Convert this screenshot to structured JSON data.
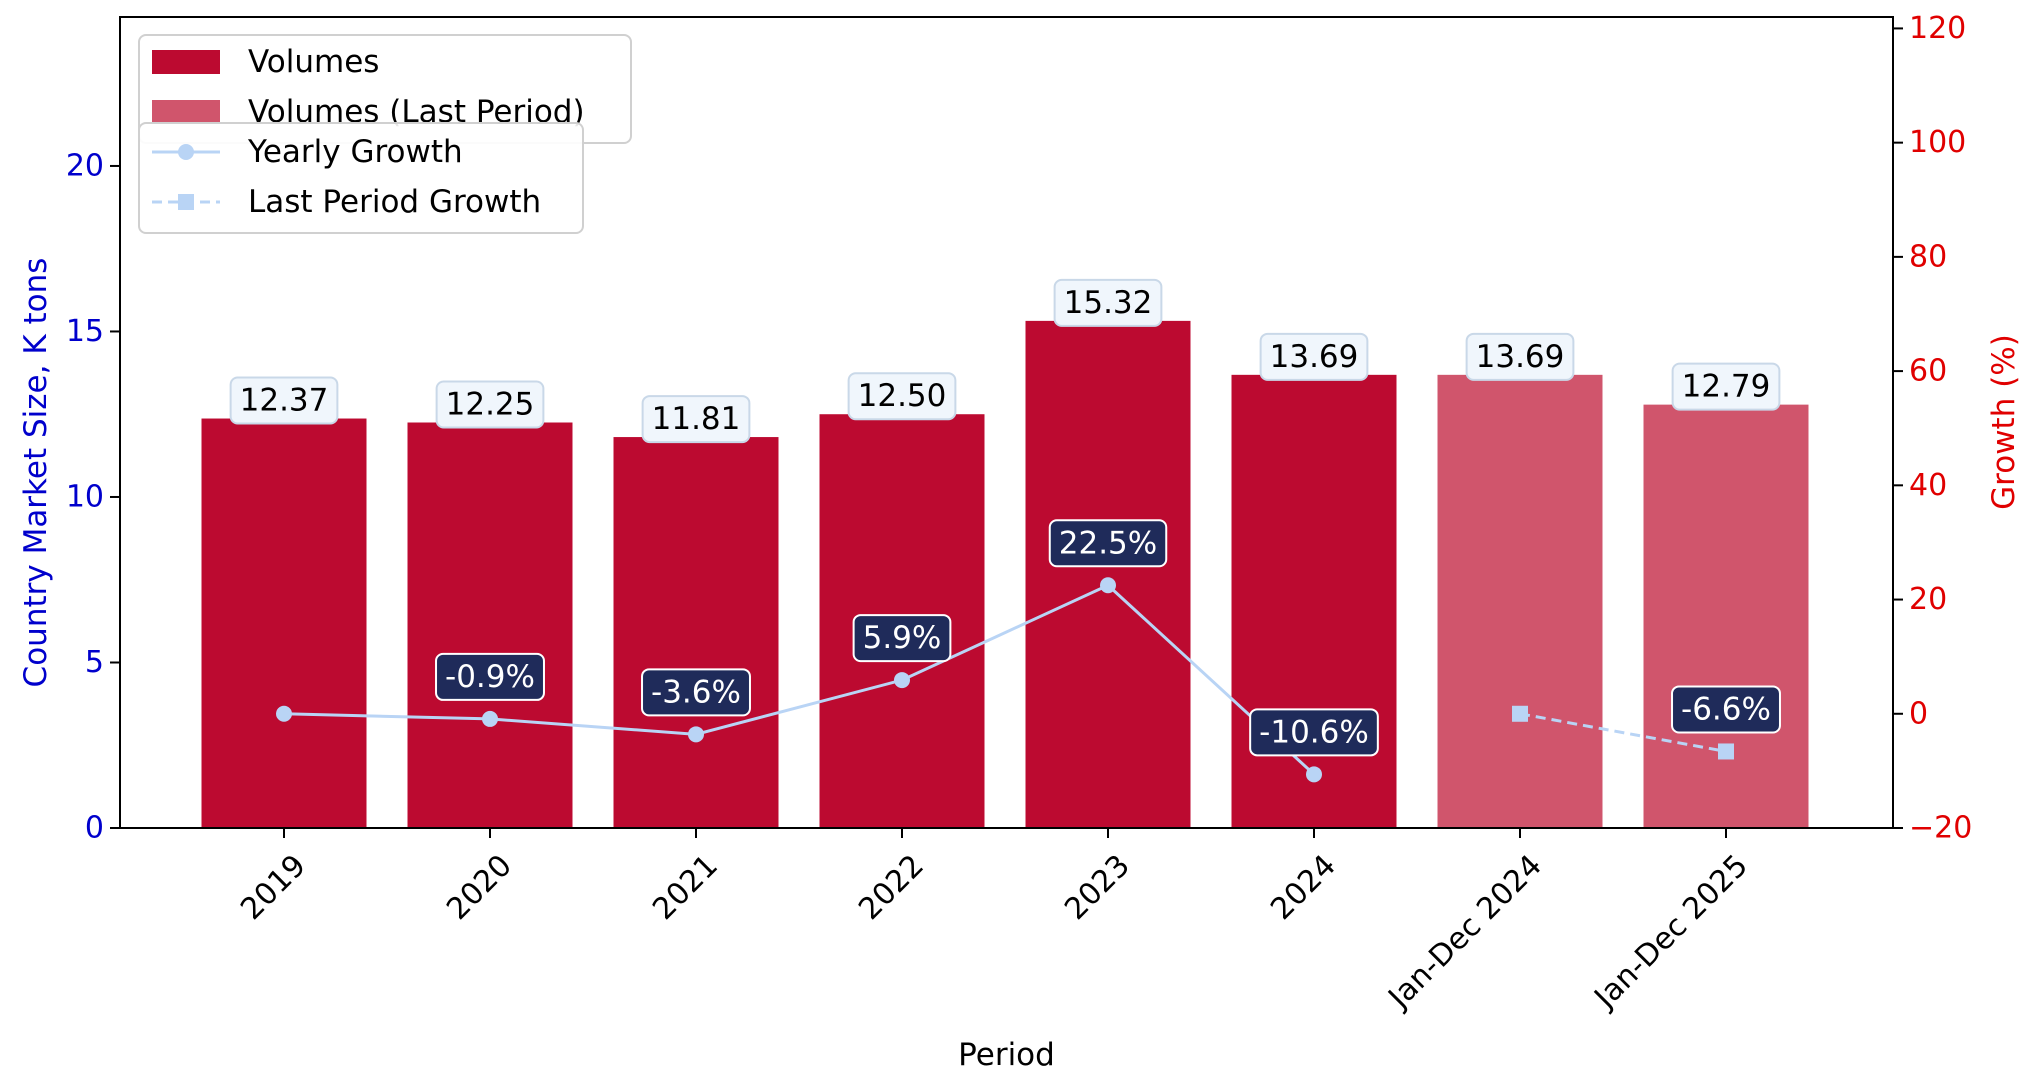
{
  "chart_data": {
    "type": "bar",
    "title": "",
    "xlabel": "Period",
    "ylabel": "Country Market Size, K tons",
    "y2label": "Growth (%)",
    "categories": [
      "2019",
      "2020",
      "2021",
      "2022",
      "2023",
      "2024",
      "Jan-Dec 2024",
      "Jan-Dec 2025"
    ],
    "ylim": [
      0,
      24.5
    ],
    "y2lim": [
      -20,
      122
    ],
    "yticks": [
      0,
      5,
      10,
      15,
      20
    ],
    "y2ticks": [
      -20,
      0,
      20,
      40,
      60,
      80,
      100,
      120
    ],
    "y2tick_labels": [
      "−20",
      "0",
      "20",
      "40",
      "60",
      "80",
      "100",
      "120"
    ],
    "legend_placement": "top-left",
    "grid": false,
    "series": [
      {
        "name": "Volumes",
        "kind": "bar",
        "axis": "left",
        "color": "#BC0A30",
        "values": [
          12.37,
          12.25,
          11.81,
          12.5,
          15.32,
          13.69,
          null,
          null
        ],
        "labels": [
          "12.37",
          "12.25",
          "11.81",
          "12.50",
          "15.32",
          "13.69",
          "",
          ""
        ]
      },
      {
        "name": "Volumes (Last Period)",
        "kind": "bar",
        "axis": "left",
        "color": "#D0556C",
        "values": [
          null,
          null,
          null,
          null,
          null,
          null,
          13.69,
          12.79
        ],
        "labels": [
          "",
          "",
          "",
          "",
          "",
          "",
          "13.69",
          "12.79"
        ]
      },
      {
        "name": "Yearly Growth",
        "kind": "line",
        "axis": "right",
        "color": "#B9D4F5",
        "marker": "circle",
        "dash": "solid",
        "values": [
          0,
          -0.9,
          -3.6,
          5.9,
          22.5,
          -10.6,
          null,
          null
        ],
        "labels": [
          "",
          "-0.9%",
          "-3.6%",
          "5.9%",
          "22.5%",
          "-10.6%",
          "",
          ""
        ]
      },
      {
        "name": "Last Period Growth",
        "kind": "line",
        "axis": "right",
        "color": "#B9D4F5",
        "marker": "square",
        "dash": "dashed",
        "values": [
          null,
          null,
          null,
          null,
          null,
          null,
          0,
          -6.6
        ],
        "labels": [
          "",
          "",
          "",
          "",
          "",
          "",
          "",
          "-6.6%"
        ]
      }
    ],
    "colors": {
      "label_box_fill": "#F0F6FC",
      "label_box_stroke": "#C9D8E8",
      "growth_box_fill": "#1F2B5A",
      "growth_box_stroke": "#ffffff",
      "left_axis": "#0000cc",
      "right_axis": "#e00000"
    }
  }
}
